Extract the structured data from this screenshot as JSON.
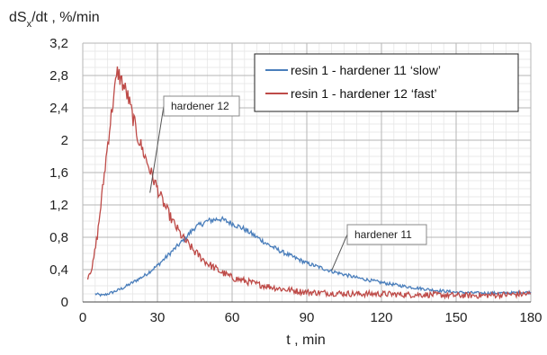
{
  "chart_data": {
    "type": "line",
    "title": "",
    "ylabel_main": "dS",
    "ylabel_sub": "x",
    "ylabel_rest": "/dt , %/min",
    "xlabel": "t , min",
    "xlim": [
      0,
      180
    ],
    "ylim": [
      0,
      3.2
    ],
    "x_ticks": [
      0,
      30,
      60,
      90,
      120,
      150,
      180
    ],
    "x_tick_labels": [
      "0",
      "30",
      "60",
      "90",
      "120",
      "150",
      "180"
    ],
    "y_ticks": [
      0,
      0.4,
      0.8,
      1.2,
      1.6,
      2,
      2.4,
      2.8,
      3.2
    ],
    "y_tick_labels": [
      "0",
      "0,4",
      "0,8",
      "1,2",
      "1,6",
      "2",
      "2,4",
      "2,8",
      "3,2"
    ],
    "grid": "major and minor",
    "legend_placement": "top-right",
    "series": [
      {
        "name": "resin 1 - hardener 11 ‘slow’",
        "color": "#4a7ebb",
        "x": [
          5,
          8,
          12,
          16,
          20,
          25,
          30,
          35,
          40,
          45,
          50,
          55,
          60,
          65,
          70,
          75,
          80,
          85,
          90,
          100,
          110,
          120,
          130,
          140,
          150,
          160,
          170,
          180
        ],
        "y": [
          0.1,
          0.08,
          0.12,
          0.17,
          0.24,
          0.33,
          0.45,
          0.6,
          0.75,
          0.92,
          1.0,
          1.03,
          0.97,
          0.9,
          0.8,
          0.7,
          0.62,
          0.55,
          0.48,
          0.38,
          0.3,
          0.24,
          0.19,
          0.15,
          0.12,
          0.11,
          0.11,
          0.12
        ]
      },
      {
        "name": "resin 1 - hardener 12 ‘fast’",
        "color": "#be4b48",
        "x": [
          2,
          4,
          6,
          8,
          10,
          12,
          14,
          16,
          18,
          20,
          22,
          25,
          28,
          32,
          36,
          40,
          45,
          50,
          55,
          60,
          70,
          80,
          90,
          100,
          110,
          120,
          130,
          140,
          150,
          160,
          170,
          180
        ],
        "y": [
          0.32,
          0.45,
          0.85,
          1.4,
          1.95,
          2.45,
          2.85,
          2.7,
          2.55,
          2.3,
          2.05,
          1.8,
          1.55,
          1.25,
          1.0,
          0.8,
          0.62,
          0.48,
          0.38,
          0.3,
          0.22,
          0.16,
          0.12,
          0.11,
          0.1,
          0.1,
          0.09,
          0.09,
          0.08,
          0.08,
          0.09,
          0.1
        ]
      }
    ],
    "annotations": [
      {
        "text": "hardener 12",
        "target_x": 27,
        "target_y": 1.35
      },
      {
        "text": "hardener 11",
        "target_x": 100,
        "target_y": 0.39
      }
    ]
  }
}
